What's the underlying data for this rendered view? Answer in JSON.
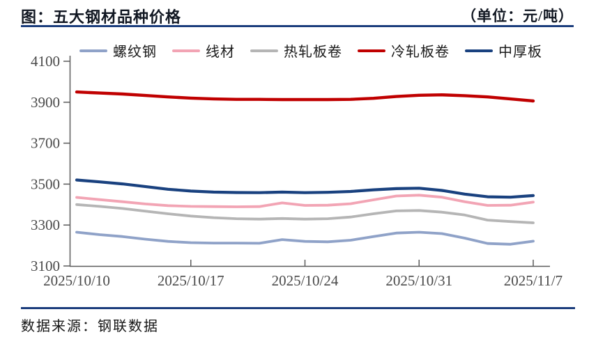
{
  "header": {
    "title": "图：五大钢材品种价格",
    "unit_label": "（单位：元/吨）"
  },
  "footer": {
    "source_label": "数据来源：钢联数据"
  },
  "colors": {
    "accent_rule": "#1c3e7d",
    "axis_line": "#5a5a5a",
    "tick_text": "#4a4a4a"
  },
  "chart_data": {
    "type": "line",
    "title": "五大钢材品种价格",
    "unit": "元/吨",
    "grid": false,
    "legend_position": "top",
    "ylim": [
      3100,
      4100
    ],
    "y_ticks": [
      4100,
      3900,
      3700,
      3500,
      3300,
      3100
    ],
    "x": [
      "2025/10/10",
      "2025/10/13",
      "2025/10/14",
      "2025/10/15",
      "2025/10/16",
      "2025/10/17",
      "2025/10/20",
      "2025/10/21",
      "2025/10/22",
      "2025/10/23",
      "2025/10/24",
      "2025/10/27",
      "2025/10/28",
      "2025/10/29",
      "2025/10/30",
      "2025/10/31",
      "2025/11/3",
      "2025/11/4",
      "2025/11/5",
      "2025/11/6",
      "2025/11/7"
    ],
    "x_tick_labels": [
      "2025/10/10",
      "2025/10/17",
      "2025/10/24",
      "2025/10/31",
      "2025/11/7"
    ],
    "x_tick_indices": [
      0,
      5,
      10,
      15,
      20
    ],
    "series": [
      {
        "name": "螺纹钢",
        "color": "#8fa2c8",
        "width": 3.8,
        "values": [
          3265,
          3253,
          3244,
          3231,
          3220,
          3214,
          3212,
          3212,
          3211,
          3229,
          3220,
          3218,
          3226,
          3244,
          3261,
          3265,
          3258,
          3236,
          3210,
          3206,
          3221
        ]
      },
      {
        "name": "线材",
        "color": "#f2a4b4",
        "width": 3.8,
        "values": [
          3435,
          3424,
          3414,
          3403,
          3395,
          3391,
          3390,
          3389,
          3390,
          3408,
          3396,
          3397,
          3404,
          3423,
          3442,
          3446,
          3436,
          3414,
          3396,
          3397,
          3412
        ]
      },
      {
        "name": "热轧板卷",
        "color": "#b5b5b5",
        "width": 3.8,
        "values": [
          3400,
          3391,
          3381,
          3368,
          3355,
          3344,
          3336,
          3331,
          3329,
          3332,
          3329,
          3331,
          3339,
          3355,
          3369,
          3371,
          3363,
          3349,
          3324,
          3317,
          3311
        ]
      },
      {
        "name": "冷轧板卷",
        "color": "#c00000",
        "width": 4.4,
        "values": [
          3950,
          3945,
          3940,
          3933,
          3926,
          3920,
          3916,
          3914,
          3914,
          3913,
          3913,
          3913,
          3914,
          3919,
          3928,
          3934,
          3936,
          3932,
          3926,
          3916,
          3906
        ]
      },
      {
        "name": "中厚板",
        "color": "#19417f",
        "width": 4.2,
        "values": [
          3520,
          3511,
          3501,
          3488,
          3475,
          3466,
          3461,
          3459,
          3458,
          3461,
          3458,
          3460,
          3464,
          3472,
          3478,
          3480,
          3469,
          3451,
          3438,
          3436,
          3444
        ]
      }
    ]
  }
}
